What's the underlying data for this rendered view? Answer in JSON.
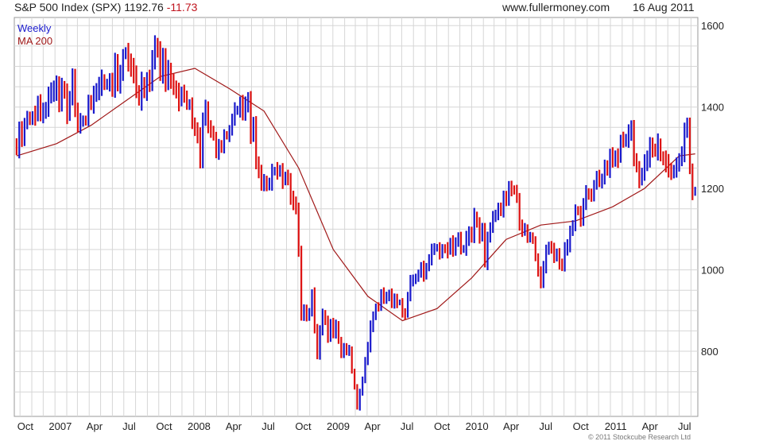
{
  "header": {
    "title": "S&P 500 Index (SPX)",
    "last": "1192.76",
    "change": "-11.73",
    "site": "www.fullermoney.com",
    "date": "16 Aug 2011"
  },
  "copyright": "© 2011 Stockcube Research Ltd",
  "colors": {
    "up": "#1a1acc",
    "down": "#dd1111",
    "ma": "#a01818",
    "grid": "#d6d6d6"
  },
  "chart_data": {
    "type": "line",
    "ylim": [
      640,
      1620
    ],
    "y_ticks": [
      "1600",
      "1400",
      "1200",
      "1000",
      "800"
    ],
    "x_ticks": [
      "Oct",
      "2007",
      "Apr",
      "Jul",
      "Oct",
      "2008",
      "Apr",
      "Jul",
      "Oct",
      "2009",
      "Apr",
      "Jul",
      "Oct",
      "2010",
      "Apr",
      "Jul",
      "Oct",
      "2011",
      "Apr",
      "Jul"
    ],
    "grid": true,
    "legend": [
      {
        "name": "Weekly",
        "color": "#1a1acc"
      },
      {
        "name": "MA 200",
        "color": "#a01818"
      }
    ],
    "series": [
      {
        "name": "Weekly",
        "kind": "weekly-range",
        "x": [
          "2006-09-22",
          "2006-10-20",
          "2006-11-17",
          "2006-12-15",
          "2007-01-12",
          "2007-02-16",
          "2007-03-02",
          "2007-03-23",
          "2007-04-20",
          "2007-05-18",
          "2007-06-15",
          "2007-07-13",
          "2007-07-27",
          "2007-08-10",
          "2007-08-17",
          "2007-09-07",
          "2007-09-21",
          "2007-10-12",
          "2007-11-02",
          "2007-11-23",
          "2007-12-07",
          "2008-01-04",
          "2008-01-18",
          "2008-02-01",
          "2008-03-07",
          "2008-03-21",
          "2008-04-18",
          "2008-05-16",
          "2008-06-06",
          "2008-06-27",
          "2008-07-18",
          "2008-08-08",
          "2008-09-05",
          "2008-09-26",
          "2008-10-10",
          "2008-10-24",
          "2008-11-07",
          "2008-11-21",
          "2008-12-05",
          "2008-12-26",
          "2009-01-09",
          "2009-01-23",
          "2009-02-13",
          "2009-03-06",
          "2009-03-20",
          "2009-04-10",
          "2009-05-08",
          "2009-06-12",
          "2009-07-10",
          "2009-07-24",
          "2009-08-21",
          "2009-09-18",
          "2009-10-23",
          "2009-11-20",
          "2009-12-18",
          "2010-01-15",
          "2010-02-05",
          "2010-03-05",
          "2010-04-23",
          "2010-05-07",
          "2010-05-28",
          "2010-06-11",
          "2010-07-02",
          "2010-07-23",
          "2010-08-13",
          "2010-08-27",
          "2010-09-17",
          "2010-10-15",
          "2010-11-12",
          "2010-12-10",
          "2011-01-07",
          "2011-02-04",
          "2011-02-18",
          "2011-03-18",
          "2011-04-08",
          "2011-04-29",
          "2011-05-27",
          "2011-06-17",
          "2011-07-08",
          "2011-07-22",
          "2011-08-05",
          "2011-08-12"
        ],
        "values": [
          1314,
          1368,
          1400,
          1420,
          1435,
          1456,
          1385,
          1436,
          1490,
          1525,
          1515,
          1552,
          1462,
          1410,
          1450,
          1470,
          1525,
          1562,
          1505,
          1440,
          1505,
          1412,
          1325,
          1380,
          1290,
          1328,
          1390,
          1425,
          1360,
          1278,
          1258,
          1298,
          1245,
          1212,
          900,
          875,
          940,
          800,
          890,
          870,
          900,
          825,
          830,
          680,
          765,
          855,
          935,
          935,
          880,
          980,
          1025,
          1075,
          1080,
          1100,
          1105,
          1135,
          1070,
          1125,
          1210,
          1110,
          1090,
          1090,
          1020,
          1105,
          1080,
          1055,
          1125,
          1175,
          1200,
          1240,
          1270,
          1312,
          1345,
          1268,
          1330,
          1360,
          1325,
          1272,
          1345,
          1345,
          1200,
          1192
        ]
      },
      {
        "name": "MA 200",
        "x": [
          "2006-09-22",
          "2007-01-05",
          "2007-04-06",
          "2007-07-06",
          "2007-10-05",
          "2008-01-04",
          "2008-04-04",
          "2008-07-04",
          "2008-10-03",
          "2009-01-02",
          "2009-04-03",
          "2009-07-03",
          "2009-10-02",
          "2010-01-01",
          "2010-04-02",
          "2010-07-02",
          "2010-10-01",
          "2011-01-07",
          "2011-04-01",
          "2011-07-01",
          "2011-08-12"
        ],
        "values": [
          1280,
          1310,
          1355,
          1415,
          1475,
          1495,
          1445,
          1390,
          1250,
          1050,
          935,
          875,
          905,
          980,
          1075,
          1110,
          1120,
          1155,
          1200,
          1280,
          1285
        ]
      }
    ]
  }
}
